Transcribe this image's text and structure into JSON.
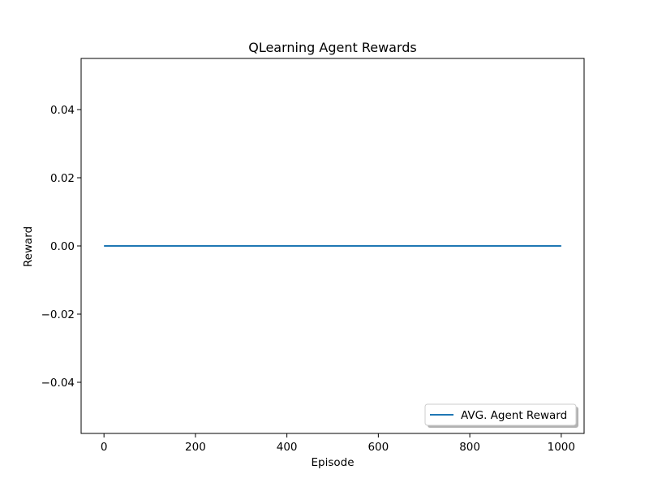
{
  "chart_data": {
    "type": "line",
    "title": "QLearning Agent Rewards",
    "xlabel": "Episode",
    "ylabel": "Reward",
    "xlim": [
      -50,
      1050
    ],
    "ylim": [
      -0.055,
      0.055
    ],
    "x_ticks": [
      0,
      200,
      400,
      600,
      800,
      1000
    ],
    "x_tick_labels": [
      "0",
      "200",
      "400",
      "600",
      "800",
      "1000"
    ],
    "y_ticks": [
      0.04,
      0.02,
      0.0,
      -0.02,
      -0.04
    ],
    "y_tick_labels": [
      "0.04",
      "0.02",
      "0.00",
      "−0.02",
      "−0.04"
    ],
    "grid": false,
    "legend_position": "lower-right",
    "series": [
      {
        "name": "AVG. Agent Reward",
        "color": "#1f77b4",
        "x": [
          0,
          1000
        ],
        "y": [
          0.0,
          0.0
        ]
      }
    ]
  }
}
